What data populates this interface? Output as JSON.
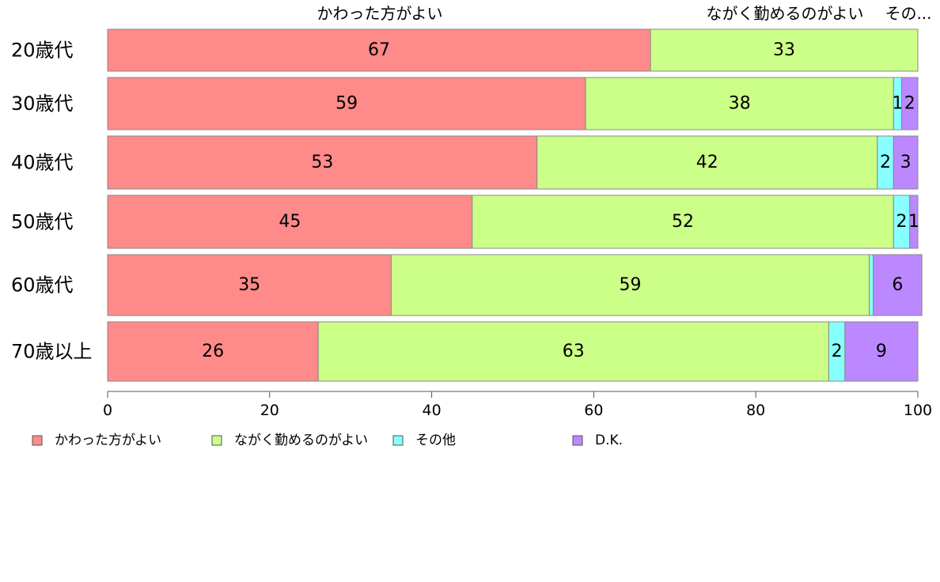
{
  "chart_data": {
    "type": "bar",
    "orientation": "horizontal",
    "stacked": true,
    "categories": [
      "20歳代",
      "30歳代",
      "40歳代",
      "50歳代",
      "60歳代",
      "70歳以上"
    ],
    "series": [
      {
        "name": "かわった方がよい",
        "color": "#ff8a8a",
        "values": [
          67,
          59,
          53,
          45,
          35,
          26
        ]
      },
      {
        "name": "ながく勤めるのがよい",
        "color": "#ccff88",
        "values": [
          33,
          38,
          42,
          52,
          59,
          63
        ]
      },
      {
        "name": "その他",
        "color": "#88ffff",
        "values": [
          0,
          1,
          2,
          2,
          0.5,
          2
        ]
      },
      {
        "name": "D.K.",
        "color": "#bb88ff",
        "values": [
          0,
          2,
          3,
          1,
          6,
          9
        ]
      }
    ],
    "data_labels": [
      [
        "67",
        "33",
        "",
        ""
      ],
      [
        "59",
        "38",
        "1",
        "2"
      ],
      [
        "53",
        "42",
        "2",
        "3"
      ],
      [
        "45",
        "52",
        "2",
        "1"
      ],
      [
        "35",
        "59",
        "",
        "6"
      ],
      [
        "26",
        "63",
        "2",
        "9"
      ]
    ],
    "top_labels": [
      "かわった方がよい",
      "ながく勤めるのがよい",
      "その..."
    ],
    "xlim": [
      0,
      100
    ],
    "xticks": [
      0,
      20,
      40,
      60,
      80,
      100
    ],
    "grid": false,
    "legend_position": "bottom",
    "legend": [
      "かわった方がよい",
      "ながく勤めるのがよい",
      "その他",
      "D.K."
    ]
  }
}
